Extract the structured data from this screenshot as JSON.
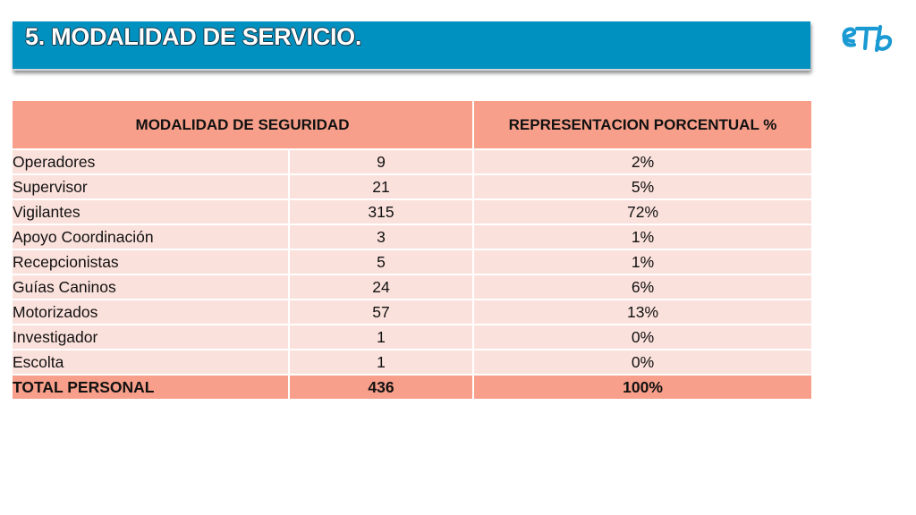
{
  "title": "5. MODALIDAD DE SERVICIO.",
  "logo": {
    "text": "etb",
    "icon": "etb-logo-icon",
    "color": "#1a9ad2"
  },
  "colors": {
    "title_bar": "#0091c1",
    "header_fill": "#f79f8a",
    "row_fill": "#fbe1dc"
  },
  "table": {
    "headers": {
      "modalidad": "MODALIDAD DE SEGURIDAD",
      "porcentaje": "REPRESENTACION PORCENTUAL %"
    },
    "rows": [
      {
        "name": "Operadores",
        "count": "9",
        "percent": "2%"
      },
      {
        "name": "Supervisor",
        "count": "21",
        "percent": "5%"
      },
      {
        "name": "Vigilantes",
        "count": "315",
        "percent": "72%"
      },
      {
        "name": "Apoyo Coordinación",
        "count": "3",
        "percent": "1%"
      },
      {
        "name": "Recepcionistas",
        "count": "5",
        "percent": "1%"
      },
      {
        "name": "Guías Caninos",
        "count": "24",
        "percent": "6%"
      },
      {
        "name": "Motorizados",
        "count": "57",
        "percent": "13%"
      },
      {
        "name": "Investigador",
        "count": "1",
        "percent": "0%"
      },
      {
        "name": "Escolta",
        "count": "1",
        "percent": "0%"
      }
    ],
    "total": {
      "name": "TOTAL PERSONAL",
      "count": "436",
      "percent": "100%"
    }
  }
}
